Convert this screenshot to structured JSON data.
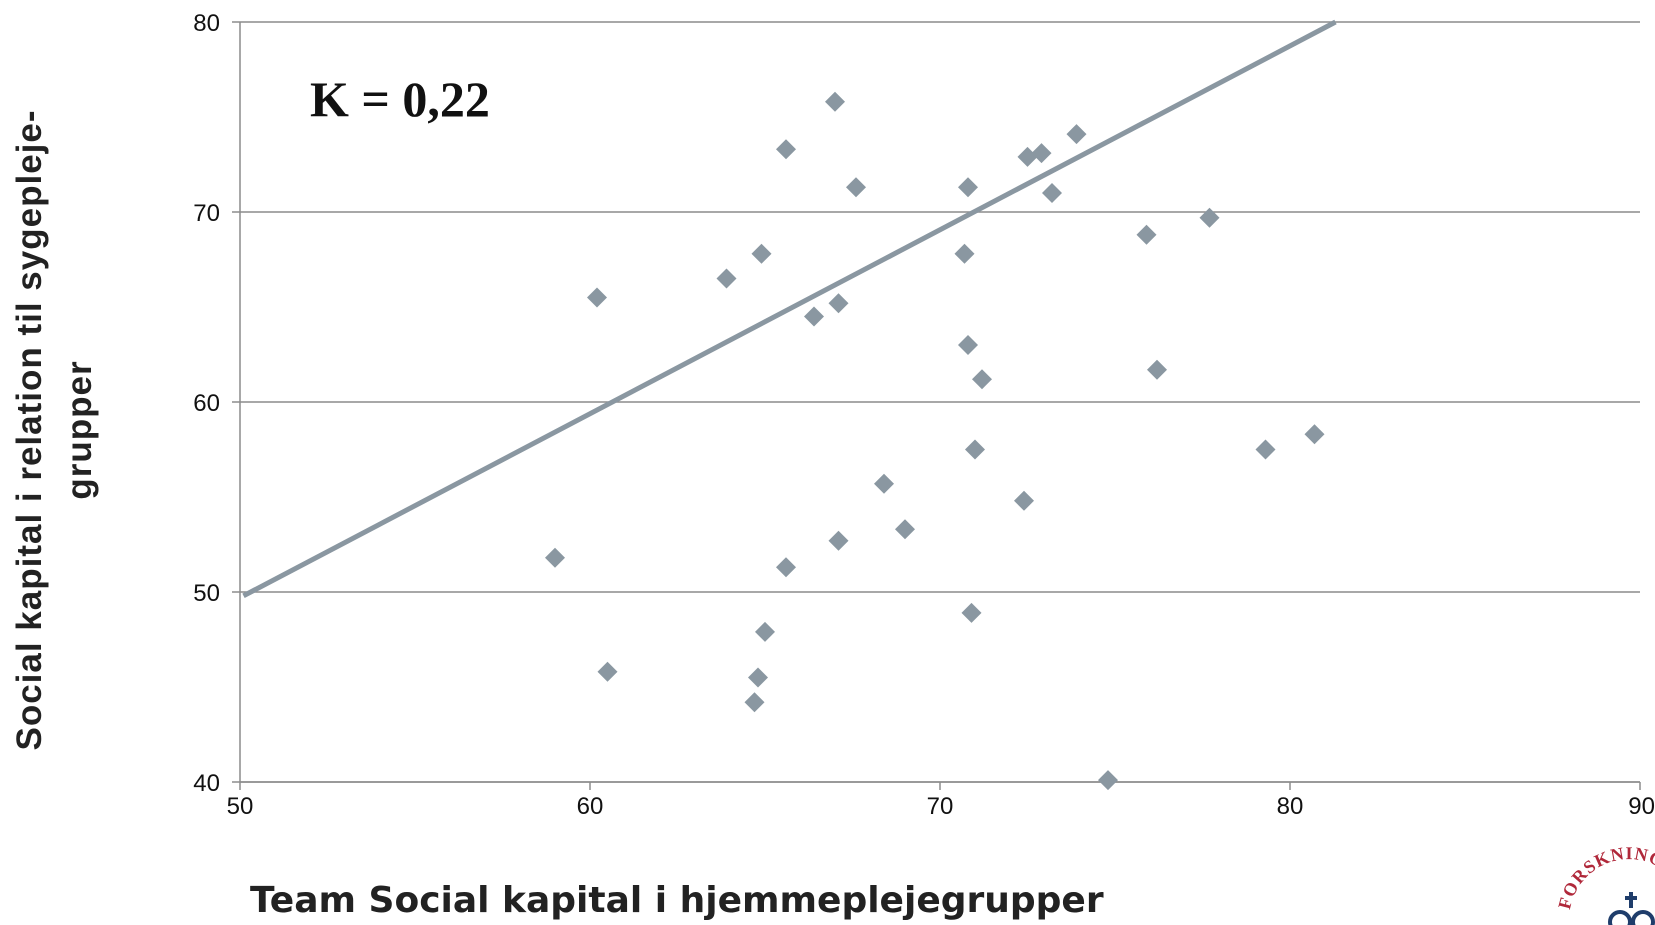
{
  "chart_data": {
    "type": "scatter",
    "xlabel": "Team Social kapital i hjemmeplejegrupper",
    "ylabel": "Social kapital i relation til sygepleje-grupper",
    "annotation": "K = 0,22",
    "xlim": [
      50,
      90
    ],
    "ylim": [
      40,
      80
    ],
    "x_ticks": [
      "50",
      "60",
      "70",
      "80",
      "90"
    ],
    "y_ticks": [
      "40",
      "50",
      "60",
      "70",
      "80"
    ],
    "grid": "horizontal",
    "marker": "diamond",
    "point_color": "#8a97a1",
    "line_color": "#8a97a1",
    "points": [
      {
        "x": 59.0,
        "y": 51.8
      },
      {
        "x": 60.2,
        "y": 65.5
      },
      {
        "x": 60.5,
        "y": 45.8
      },
      {
        "x": 63.9,
        "y": 66.5
      },
      {
        "x": 64.7,
        "y": 44.2
      },
      {
        "x": 64.8,
        "y": 45.5
      },
      {
        "x": 64.9,
        "y": 67.8
      },
      {
        "x": 65.0,
        "y": 47.9
      },
      {
        "x": 65.6,
        "y": 51.3
      },
      {
        "x": 65.6,
        "y": 73.3
      },
      {
        "x": 66.4,
        "y": 64.5
      },
      {
        "x": 67.0,
        "y": 75.8
      },
      {
        "x": 67.1,
        "y": 65.2
      },
      {
        "x": 67.1,
        "y": 52.7
      },
      {
        "x": 67.6,
        "y": 71.3
      },
      {
        "x": 68.4,
        "y": 55.7
      },
      {
        "x": 69.0,
        "y": 53.3
      },
      {
        "x": 70.7,
        "y": 67.8
      },
      {
        "x": 70.8,
        "y": 63.0
      },
      {
        "x": 70.8,
        "y": 71.3
      },
      {
        "x": 70.9,
        "y": 48.9
      },
      {
        "x": 71.0,
        "y": 57.5
      },
      {
        "x": 71.2,
        "y": 61.2
      },
      {
        "x": 72.4,
        "y": 54.8
      },
      {
        "x": 72.5,
        "y": 72.9
      },
      {
        "x": 72.9,
        "y": 73.1
      },
      {
        "x": 73.2,
        "y": 71.0
      },
      {
        "x": 73.9,
        "y": 74.1
      },
      {
        "x": 74.8,
        "y": 40.1
      },
      {
        "x": 75.9,
        "y": 68.8
      },
      {
        "x": 76.2,
        "y": 61.7
      },
      {
        "x": 77.7,
        "y": 69.7
      },
      {
        "x": 79.3,
        "y": 57.5
      },
      {
        "x": 80.7,
        "y": 58.3
      }
    ],
    "trendline": {
      "x1": 50.1,
      "y1": 49.8,
      "x2": 81.3,
      "y2": 80.0
    }
  },
  "logo": {
    "text": "FORSKNINGS"
  }
}
